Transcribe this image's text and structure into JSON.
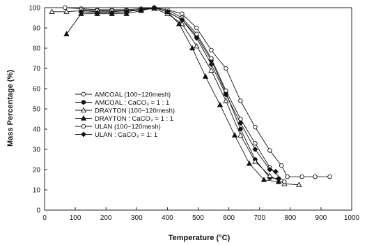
{
  "chart_data": {
    "type": "line",
    "xlabel": "Temperature (°C)",
    "ylabel": "Mass Percentage (%)",
    "xlim": [
      0,
      1050
    ],
    "ylim": [
      0,
      100
    ],
    "xticks": [
      "0",
      "100",
      "200",
      "300",
      "400",
      "500",
      "600",
      "700",
      "800",
      "900",
      "1000"
    ],
    "yticks": [
      "0",
      "10",
      "20",
      "30",
      "40",
      "50",
      "60",
      "70",
      "80",
      "90",
      "100"
    ],
    "legend_position": "left-middle",
    "grid": false,
    "series": [
      {
        "name": "AMCOAL (100~120mesh)",
        "marker": "circle-open",
        "x": [
          70,
          125,
          180,
          230,
          280,
          330,
          375,
          420,
          470,
          520,
          570,
          620,
          670,
          720,
          770,
          810,
          830,
          880,
          925,
          975
        ],
        "y": [
          100,
          99.5,
          99,
          99,
          99,
          99.5,
          100,
          99,
          97,
          90,
          79,
          70,
          54,
          41,
          29.5,
          22,
          16.5,
          16.5,
          16.5,
          16.5
        ]
      },
      {
        "name": "AMCOAL : CaCO₃ = 1 : 1",
        "marker": "circle-filled",
        "x": [
          125,
          180,
          230,
          280,
          330,
          375,
          420,
          470,
          520,
          570,
          620,
          670,
          720,
          770,
          800
        ],
        "y": [
          99,
          98.5,
          98.5,
          98.5,
          99,
          100,
          98,
          94,
          86,
          74,
          58,
          40,
          25,
          16,
          15.5
        ]
      },
      {
        "name": "DRAYTON (100~120mesh)",
        "marker": "triangle-open",
        "x": [
          25,
          75,
          125,
          180,
          230,
          280,
          330,
          375,
          420,
          470,
          520,
          570,
          620,
          670,
          720,
          770,
          820,
          870
        ],
        "y": [
          98,
          98,
          98.5,
          98,
          98,
          98.5,
          99,
          99.5,
          97,
          92,
          81,
          69,
          54,
          37,
          24,
          17,
          13,
          12.5
        ]
      },
      {
        "name": "DRAYTON : CaCO₃ = 1 : 1",
        "marker": "triangle-filled",
        "x": [
          75,
          125,
          180,
          230,
          280,
          330,
          375,
          420,
          460,
          505,
          550,
          600,
          650,
          700,
          750,
          800
        ],
        "y": [
          87,
          97,
          97,
          97,
          97,
          98.5,
          100,
          98,
          92,
          80,
          66,
          52,
          37,
          23,
          15,
          14
        ]
      },
      {
        "name": "ULAN (100~120mesh)",
        "marker": "circle-open",
        "x": [
          125,
          180,
          230,
          280,
          330,
          375,
          420,
          470,
          520,
          570,
          620,
          670,
          720,
          770,
          820
        ],
        "y": [
          99,
          98.5,
          98.5,
          98.5,
          99,
          100,
          99,
          95,
          87,
          75,
          59,
          45,
          33,
          21,
          14
        ]
      },
      {
        "name": "ULAN : CaCO₃ = 1: 1",
        "marker": "diamond-filled",
        "x": [
          125,
          180,
          230,
          280,
          330,
          375,
          420,
          470,
          520,
          570,
          620,
          670,
          720,
          770,
          790
        ],
        "y": [
          98,
          97.5,
          97.5,
          98,
          99,
          100,
          98,
          94,
          85,
          72,
          57,
          43,
          30,
          20,
          19
        ]
      }
    ]
  }
}
